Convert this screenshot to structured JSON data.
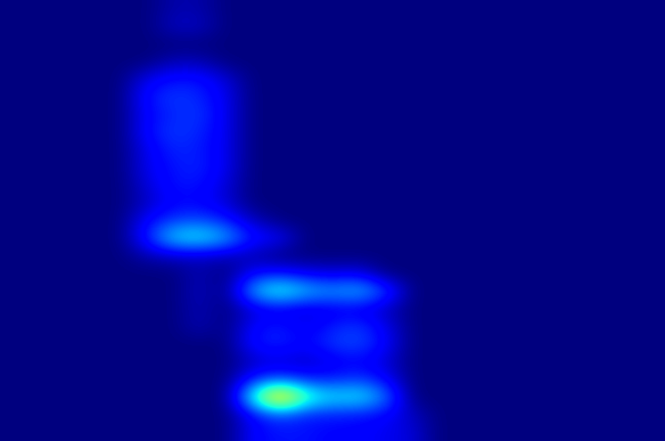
{
  "chart_data": {
    "type": "heatmap",
    "tick_labels": false,
    "color_range": [
      0,
      1
    ],
    "cells": [
      [
        0,
        0,
        0,
        0,
        0,
        0,
        0.04,
        0.04,
        0,
        0,
        0,
        0,
        0,
        0,
        0,
        0,
        0,
        0,
        0,
        0,
        0,
        0,
        0,
        0,
        0
      ],
      [
        0,
        0,
        0,
        0,
        0,
        0,
        0.06,
        0.06,
        0,
        0,
        0,
        0,
        0,
        0,
        0,
        0,
        0,
        0,
        0,
        0,
        0,
        0,
        0,
        0,
        0
      ],
      [
        0,
        0,
        0,
        0,
        0,
        0,
        0,
        0,
        0,
        0,
        0,
        0,
        0,
        0,
        0,
        0,
        0,
        0,
        0,
        0,
        0,
        0,
        0,
        0,
        0
      ],
      [
        0,
        0,
        0,
        0,
        0,
        0,
        0.05,
        0.05,
        0,
        0,
        0,
        0,
        0,
        0,
        0,
        0,
        0,
        0,
        0,
        0,
        0,
        0,
        0,
        0,
        0
      ],
      [
        0,
        0,
        0,
        0,
        0,
        0.1,
        0.14,
        0.14,
        0.08,
        0,
        0,
        0,
        0,
        0,
        0,
        0,
        0,
        0,
        0,
        0,
        0,
        0,
        0,
        0,
        0
      ],
      [
        0,
        0,
        0,
        0,
        0,
        0.14,
        0.18,
        0.16,
        0.1,
        0,
        0,
        0,
        0,
        0,
        0,
        0,
        0,
        0,
        0,
        0,
        0,
        0,
        0,
        0,
        0
      ],
      [
        0,
        0,
        0,
        0,
        0,
        0.12,
        0.16,
        0.18,
        0.1,
        0,
        0,
        0,
        0,
        0,
        0,
        0,
        0,
        0,
        0,
        0,
        0,
        0,
        0,
        0,
        0
      ],
      [
        0,
        0,
        0,
        0,
        0,
        0.13,
        0.18,
        0.16,
        0.1,
        0,
        0,
        0,
        0,
        0,
        0,
        0,
        0,
        0,
        0,
        0,
        0,
        0,
        0,
        0,
        0
      ],
      [
        0,
        0,
        0,
        0,
        0,
        0.1,
        0.16,
        0.15,
        0.1,
        0,
        0,
        0,
        0,
        0,
        0,
        0,
        0,
        0,
        0,
        0,
        0,
        0,
        0,
        0,
        0
      ],
      [
        0,
        0,
        0,
        0,
        0,
        0.1,
        0.14,
        0.16,
        0.1,
        0,
        0,
        0,
        0,
        0,
        0,
        0,
        0,
        0,
        0,
        0,
        0,
        0,
        0,
        0,
        0
      ],
      [
        0,
        0,
        0,
        0,
        0,
        0.08,
        0.14,
        0.14,
        0.08,
        0,
        0,
        0,
        0,
        0,
        0,
        0,
        0,
        0,
        0,
        0,
        0,
        0,
        0,
        0,
        0
      ],
      [
        0,
        0,
        0,
        0,
        0,
        0.06,
        0.12,
        0.12,
        0.08,
        0,
        0,
        0,
        0,
        0,
        0,
        0,
        0,
        0,
        0,
        0,
        0,
        0,
        0,
        0,
        0
      ],
      [
        0,
        0,
        0,
        0,
        0,
        0.12,
        0.18,
        0.2,
        0.15,
        0.06,
        0,
        0,
        0,
        0,
        0,
        0,
        0,
        0,
        0,
        0,
        0,
        0,
        0,
        0,
        0
      ],
      [
        0,
        0,
        0,
        0,
        0,
        0.15,
        0.35,
        0.38,
        0.3,
        0.14,
        0.12,
        0,
        0,
        0,
        0,
        0,
        0,
        0,
        0,
        0,
        0,
        0,
        0,
        0,
        0
      ],
      [
        0,
        0,
        0,
        0,
        0,
        0.04,
        0.06,
        0.06,
        0.05,
        0.04,
        0,
        0,
        0,
        0,
        0,
        0,
        0,
        0,
        0,
        0,
        0,
        0,
        0,
        0,
        0
      ],
      [
        0,
        0,
        0,
        0,
        0,
        0,
        0,
        0.05,
        0,
        0.12,
        0.14,
        0.1,
        0.08,
        0.1,
        0,
        0,
        0,
        0,
        0,
        0,
        0,
        0,
        0,
        0,
        0
      ],
      [
        0,
        0,
        0,
        0,
        0,
        0,
        0,
        0.06,
        0,
        0.3,
        0.42,
        0.32,
        0.28,
        0.32,
        0.2,
        0,
        0,
        0,
        0,
        0,
        0,
        0,
        0,
        0,
        0
      ],
      [
        0,
        0,
        0,
        0,
        0,
        0,
        0,
        0.05,
        0,
        0.08,
        0.1,
        0.08,
        0.1,
        0.1,
        0.06,
        0,
        0,
        0,
        0,
        0,
        0,
        0,
        0,
        0,
        0
      ],
      [
        0,
        0,
        0,
        0,
        0,
        0,
        0,
        0.05,
        0,
        0.12,
        0.15,
        0.1,
        0.15,
        0.18,
        0.1,
        0,
        0,
        0,
        0,
        0,
        0,
        0,
        0,
        0,
        0
      ],
      [
        0,
        0,
        0,
        0,
        0,
        0,
        0,
        0,
        0,
        0.14,
        0.16,
        0.12,
        0.18,
        0.2,
        0.12,
        0,
        0,
        0,
        0,
        0,
        0,
        0,
        0,
        0,
        0
      ],
      [
        0,
        0,
        0,
        0,
        0,
        0,
        0,
        0,
        0,
        0.06,
        0.08,
        0.06,
        0.1,
        0.12,
        0.08,
        0,
        0,
        0,
        0,
        0,
        0,
        0,
        0,
        0,
        0
      ],
      [
        0,
        0,
        0,
        0,
        0,
        0,
        0,
        0,
        0,
        0.15,
        0.2,
        0.15,
        0.15,
        0.18,
        0.12,
        0,
        0,
        0,
        0,
        0,
        0,
        0,
        0,
        0,
        0
      ],
      [
        0,
        0,
        0,
        0,
        0,
        0,
        0,
        0,
        0,
        0.4,
        0.8,
        0.45,
        0.35,
        0.38,
        0.25,
        0,
        0,
        0,
        0,
        0,
        0,
        0,
        0,
        0,
        0
      ],
      [
        0,
        0,
        0,
        0,
        0,
        0,
        0,
        0,
        0,
        0.12,
        0.2,
        0.15,
        0.15,
        0.14,
        0.12,
        0.06,
        0,
        0,
        0,
        0,
        0,
        0,
        0,
        0,
        0
      ],
      [
        0,
        0,
        0,
        0,
        0,
        0,
        0,
        0,
        0,
        0.12,
        0.14,
        0.14,
        0.12,
        0.12,
        0.1,
        0.08,
        0,
        0,
        0,
        0,
        0,
        0,
        0,
        0,
        0
      ]
    ]
  }
}
